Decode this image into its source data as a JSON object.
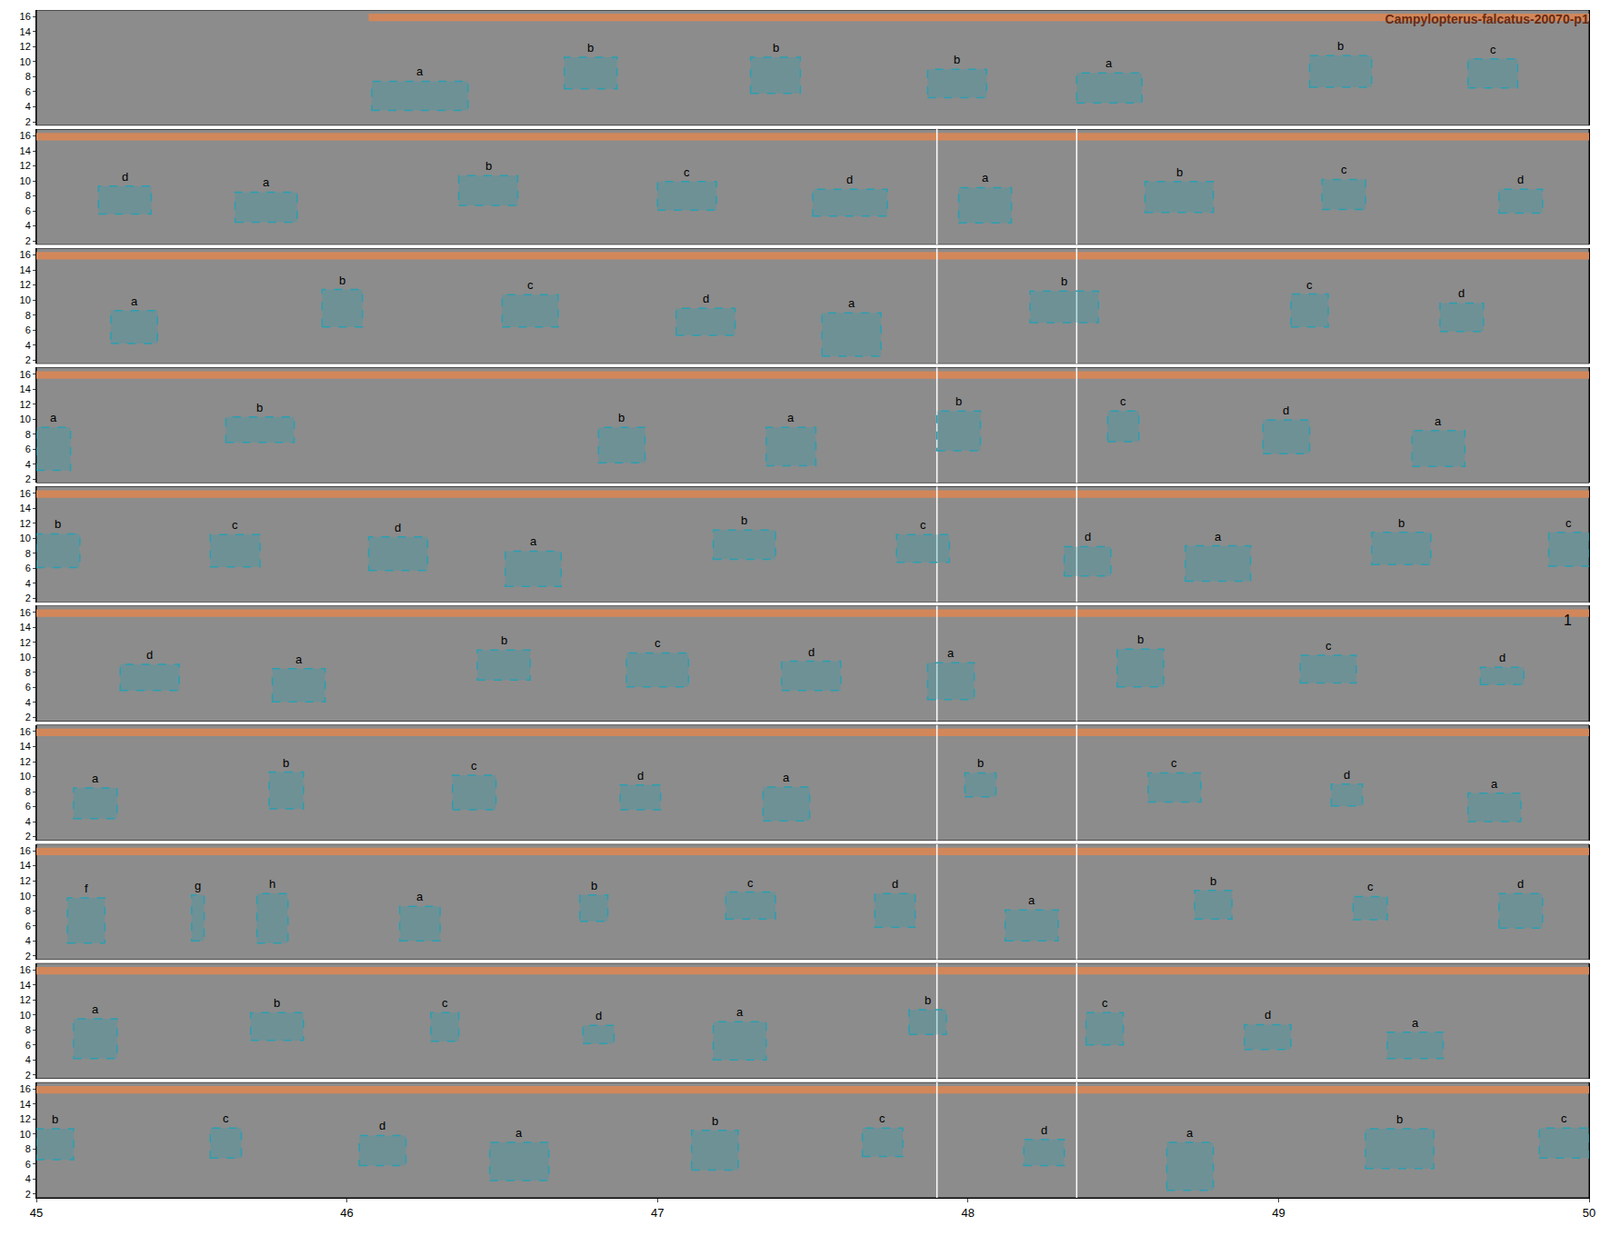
{
  "chart_data": {
    "type": "spectrogram_annotations",
    "title": "Campylopterus-falcatus-20070-p1",
    "xlim": [
      45,
      50
    ],
    "xticks": [
      45,
      46,
      47,
      48,
      49,
      50
    ],
    "ylim": [
      1.5,
      16.9
    ],
    "yticks": [
      2,
      4,
      6,
      8,
      10,
      12,
      14,
      16
    ],
    "color": "#2a9fb0",
    "band_color": "#d2875a",
    "band_ylim": [
      15.4,
      16.4
    ],
    "line_style": "dash",
    "rows": [
      {
        "band": [
          46.07,
          50
        ],
        "lines": [],
        "boxes": [
          {
            "label": "a",
            "x": [
              46.08,
              46.39
            ],
            "y": [
              3.5,
              7.4
            ]
          },
          {
            "label": "b",
            "x": [
              46.7,
              46.87
            ],
            "y": [
              6.4,
              10.6
            ]
          },
          {
            "label": "b",
            "x": [
              47.3,
              47.46
            ],
            "y": [
              5.8,
              10.6
            ]
          },
          {
            "label": "b",
            "x": [
              47.87,
              48.06
            ],
            "y": [
              5.2,
              9.0
            ]
          },
          {
            "label": "a",
            "x": [
              48.35,
              48.56
            ],
            "y": [
              4.5,
              8.5
            ]
          },
          {
            "label": "b",
            "x": [
              49.1,
              49.3
            ],
            "y": [
              6.6,
              10.8
            ]
          },
          {
            "label": "c",
            "x": [
              49.61,
              49.77
            ],
            "y": [
              6.5,
              10.4
            ]
          }
        ]
      },
      {
        "band": [
          45,
          50
        ],
        "lines": [
          47.9,
          48.35
        ],
        "boxes": [
          {
            "label": "d",
            "x": [
              45.2,
              45.37
            ],
            "y": [
              5.6,
              9.3
            ]
          },
          {
            "label": "a",
            "x": [
              45.64,
              45.84
            ],
            "y": [
              4.5,
              8.5
            ]
          },
          {
            "label": "b",
            "x": [
              46.36,
              46.55
            ],
            "y": [
              6.75,
              10.7
            ]
          },
          {
            "label": "c",
            "x": [
              47.0,
              47.19
            ],
            "y": [
              6.1,
              9.9
            ]
          },
          {
            "label": "d",
            "x": [
              47.5,
              47.74
            ],
            "y": [
              5.3,
              8.9
            ]
          },
          {
            "label": "a",
            "x": [
              47.97,
              48.14
            ],
            "y": [
              4.4,
              9.1
            ]
          },
          {
            "label": "b",
            "x": [
              48.57,
              48.79
            ],
            "y": [
              5.8,
              9.9
            ]
          },
          {
            "label": "c",
            "x": [
              49.14,
              49.28
            ],
            "y": [
              6.2,
              10.2
            ]
          },
          {
            "label": "d",
            "x": [
              49.71,
              49.85
            ],
            "y": [
              5.7,
              8.9
            ]
          }
        ]
      },
      {
        "band": [
          45,
          50
        ],
        "lines": [
          47.9,
          48.35
        ],
        "boxes": [
          {
            "label": "a",
            "x": [
              45.24,
              45.39
            ],
            "y": [
              4.2,
              8.6
            ]
          },
          {
            "label": "b",
            "x": [
              45.92,
              46.05
            ],
            "y": [
              6.4,
              11.4
            ]
          },
          {
            "label": "c",
            "x": [
              46.5,
              46.68
            ],
            "y": [
              6.4,
              10.7
            ]
          },
          {
            "label": "d",
            "x": [
              47.06,
              47.25
            ],
            "y": [
              5.3,
              8.9
            ]
          },
          {
            "label": "a",
            "x": [
              47.53,
              47.72
            ],
            "y": [
              2.5,
              8.3
            ]
          },
          {
            "label": "b",
            "x": [
              48.2,
              48.42
            ],
            "y": [
              7.0,
              11.2
            ]
          },
          {
            "label": "c",
            "x": [
              49.04,
              49.16
            ],
            "y": [
              6.4,
              10.8
            ]
          },
          {
            "label": "d",
            "x": [
              49.52,
              49.66
            ],
            "y": [
              5.8,
              9.6
            ]
          }
        ]
      },
      {
        "band": [
          45,
          50
        ],
        "lines": [
          47.9,
          48.35
        ],
        "boxes": [
          {
            "label": "a",
            "x": [
              45.0,
              45.11
            ],
            "y": [
              3.2,
              8.9
            ]
          },
          {
            "label": "b",
            "x": [
              45.61,
              45.83
            ],
            "y": [
              6.9,
              10.3
            ]
          },
          {
            "label": "b",
            "x": [
              46.81,
              46.96
            ],
            "y": [
              4.2,
              8.9
            ]
          },
          {
            "label": "a",
            "x": [
              47.35,
              47.51
            ],
            "y": [
              3.8,
              8.9
            ]
          },
          {
            "label": "b",
            "x": [
              47.9,
              48.04
            ],
            "y": [
              5.8,
              11.1
            ]
          },
          {
            "label": "c",
            "x": [
              48.45,
              48.55
            ],
            "y": [
              7.0,
              11.1
            ]
          },
          {
            "label": "d",
            "x": [
              48.95,
              49.1
            ],
            "y": [
              5.4,
              9.9
            ]
          },
          {
            "label": "a",
            "x": [
              49.43,
              49.6
            ],
            "y": [
              3.7,
              8.5
            ]
          }
        ]
      },
      {
        "band": [
          45,
          50
        ],
        "lines": [
          47.9,
          48.35
        ],
        "boxes": [
          {
            "label": "b",
            "x": [
              45.0,
              45.14
            ],
            "y": [
              6.1,
              10.6
            ]
          },
          {
            "label": "c",
            "x": [
              45.56,
              45.72
            ],
            "y": [
              6.2,
              10.5
            ]
          },
          {
            "label": "d",
            "x": [
              46.07,
              46.26
            ],
            "y": [
              5.7,
              10.2
            ]
          },
          {
            "label": "a",
            "x": [
              46.51,
              46.69
            ],
            "y": [
              3.6,
              8.3
            ]
          },
          {
            "label": "b",
            "x": [
              47.18,
              47.38
            ],
            "y": [
              7.2,
              11.1
            ]
          },
          {
            "label": "c",
            "x": [
              47.77,
              47.94
            ],
            "y": [
              6.8,
              10.5
            ]
          },
          {
            "label": "d",
            "x": [
              48.31,
              48.46
            ],
            "y": [
              5.0,
              8.9
            ]
          },
          {
            "label": "a",
            "x": [
              48.7,
              48.91
            ],
            "y": [
              4.3,
              9.0
            ]
          },
          {
            "label": "b",
            "x": [
              49.3,
              49.49
            ],
            "y": [
              6.5,
              10.8
            ]
          },
          {
            "label": "c",
            "x": [
              49.87,
              50.0
            ],
            "y": [
              6.3,
              10.8
            ]
          }
        ]
      },
      {
        "band": [
          45,
          50
        ],
        "lines": [
          47.9,
          48.35
        ],
        "note": {
          "text": "1",
          "x": 49.93,
          "y": 15.0
        },
        "boxes": [
          {
            "label": "d",
            "x": [
              45.27,
              45.46
            ],
            "y": [
              5.6,
              9.1
            ]
          },
          {
            "label": "a",
            "x": [
              45.76,
              45.93
            ],
            "y": [
              4.1,
              8.5
            ]
          },
          {
            "label": "b",
            "x": [
              46.42,
              46.59
            ],
            "y": [
              7.0,
              11.0
            ]
          },
          {
            "label": "c",
            "x": [
              46.9,
              47.1
            ],
            "y": [
              6.1,
              10.6
            ]
          },
          {
            "label": "d",
            "x": [
              47.4,
              47.59
            ],
            "y": [
              5.6,
              9.5
            ]
          },
          {
            "label": "a",
            "x": [
              47.87,
              48.02
            ],
            "y": [
              4.4,
              9.3
            ]
          },
          {
            "label": "b",
            "x": [
              48.48,
              48.63
            ],
            "y": [
              6.1,
              11.1
            ]
          },
          {
            "label": "c",
            "x": [
              49.07,
              49.25
            ],
            "y": [
              6.6,
              10.3
            ]
          },
          {
            "label": "d",
            "x": [
              49.65,
              49.79
            ],
            "y": [
              6.4,
              8.7
            ]
          }
        ]
      },
      {
        "band": [
          45,
          50
        ],
        "lines": [
          47.9,
          48.35
        ],
        "boxes": [
          {
            "label": "a",
            "x": [
              45.12,
              45.26
            ],
            "y": [
              4.4,
              8.5
            ]
          },
          {
            "label": "b",
            "x": [
              45.75,
              45.86
            ],
            "y": [
              5.7,
              10.6
            ]
          },
          {
            "label": "c",
            "x": [
              46.34,
              46.48
            ],
            "y": [
              5.6,
              10.2
            ]
          },
          {
            "label": "d",
            "x": [
              46.88,
              47.01
            ],
            "y": [
              5.6,
              8.9
            ]
          },
          {
            "label": "a",
            "x": [
              47.34,
              47.49
            ],
            "y": [
              4.1,
              8.6
            ]
          },
          {
            "label": "b",
            "x": [
              47.99,
              48.09
            ],
            "y": [
              7.3,
              10.5
            ]
          },
          {
            "label": "c",
            "x": [
              48.58,
              48.75
            ],
            "y": [
              6.6,
              10.5
            ]
          },
          {
            "label": "d",
            "x": [
              49.17,
              49.27
            ],
            "y": [
              6.1,
              9.0
            ]
          },
          {
            "label": "a",
            "x": [
              49.61,
              49.78
            ],
            "y": [
              4.0,
              7.8
            ]
          }
        ]
      },
      {
        "band": [
          45,
          50
        ],
        "lines": [
          47.9,
          48.35
        ],
        "boxes": [
          {
            "label": "f",
            "x": [
              45.1,
              45.22
            ],
            "y": [
              3.7,
              9.7
            ]
          },
          {
            "label": "g",
            "x": [
              45.5,
              45.54
            ],
            "y": [
              4.0,
              10.1
            ]
          },
          {
            "label": "h",
            "x": [
              45.71,
              45.81
            ],
            "y": [
              3.7,
              10.3
            ]
          },
          {
            "label": "a",
            "x": [
              46.17,
              46.3
            ],
            "y": [
              4.0,
              8.6
            ]
          },
          {
            "label": "b",
            "x": [
              46.75,
              46.84
            ],
            "y": [
              6.6,
              10.1
            ]
          },
          {
            "label": "c",
            "x": [
              47.22,
              47.38
            ],
            "y": [
              6.9,
              10.5
            ]
          },
          {
            "label": "d",
            "x": [
              47.7,
              47.83
            ],
            "y": [
              5.8,
              10.3
            ]
          },
          {
            "label": "a",
            "x": [
              48.12,
              48.29
            ],
            "y": [
              4.0,
              8.1
            ]
          },
          {
            "label": "b",
            "x": [
              48.73,
              48.85
            ],
            "y": [
              6.9,
              10.7
            ]
          },
          {
            "label": "c",
            "x": [
              49.24,
              49.35
            ],
            "y": [
              6.8,
              9.9
            ]
          },
          {
            "label": "d",
            "x": [
              49.71,
              49.85
            ],
            "y": [
              5.7,
              10.3
            ]
          }
        ]
      },
      {
        "band": [
          45,
          50
        ],
        "lines": [
          47.9,
          48.35
        ],
        "boxes": [
          {
            "label": "a",
            "x": [
              45.12,
              45.26
            ],
            "y": [
              4.2,
              9.5
            ]
          },
          {
            "label": "b",
            "x": [
              45.69,
              45.86
            ],
            "y": [
              6.6,
              10.3
            ]
          },
          {
            "label": "c",
            "x": [
              46.27,
              46.36
            ],
            "y": [
              6.5,
              10.3
            ]
          },
          {
            "label": "d",
            "x": [
              46.76,
              46.86
            ],
            "y": [
              6.2,
              8.6
            ]
          },
          {
            "label": "a",
            "x": [
              47.18,
              47.35
            ],
            "y": [
              4.0,
              9.1
            ]
          },
          {
            "label": "b",
            "x": [
              47.81,
              47.93
            ],
            "y": [
              7.4,
              10.7
            ]
          },
          {
            "label": "c",
            "x": [
              48.38,
              48.5
            ],
            "y": [
              6.0,
              10.3
            ]
          },
          {
            "label": "d",
            "x": [
              48.89,
              49.04
            ],
            "y": [
              5.4,
              8.7
            ]
          },
          {
            "label": "a",
            "x": [
              49.35,
              49.53
            ],
            "y": [
              4.2,
              7.7
            ]
          }
        ]
      },
      {
        "band": [
          45,
          50
        ],
        "lines": [
          47.9,
          48.35
        ],
        "boxes": [
          {
            "label": "b",
            "x": [
              45.0,
              45.12
            ],
            "y": [
              6.6,
              10.7
            ]
          },
          {
            "label": "c",
            "x": [
              45.56,
              45.66
            ],
            "y": [
              6.8,
              10.8
            ]
          },
          {
            "label": "d",
            "x": [
              46.04,
              46.19
            ],
            "y": [
              5.8,
              9.8
            ]
          },
          {
            "label": "a",
            "x": [
              46.46,
              46.65
            ],
            "y": [
              3.8,
              8.9
            ]
          },
          {
            "label": "b",
            "x": [
              47.11,
              47.26
            ],
            "y": [
              5.2,
              10.5
            ]
          },
          {
            "label": "c",
            "x": [
              47.66,
              47.79
            ],
            "y": [
              7.0,
              10.8
            ]
          },
          {
            "label": "d",
            "x": [
              48.18,
              48.31
            ],
            "y": [
              5.8,
              9.3
            ]
          },
          {
            "label": "a",
            "x": [
              48.64,
              48.79
            ],
            "y": [
              2.5,
              8.9
            ]
          },
          {
            "label": "b",
            "x": [
              49.28,
              49.5
            ],
            "y": [
              5.4,
              10.7
            ]
          },
          {
            "label": "c",
            "x": [
              49.84,
              50.0
            ],
            "y": [
              6.8,
              10.8
            ]
          }
        ]
      }
    ]
  }
}
